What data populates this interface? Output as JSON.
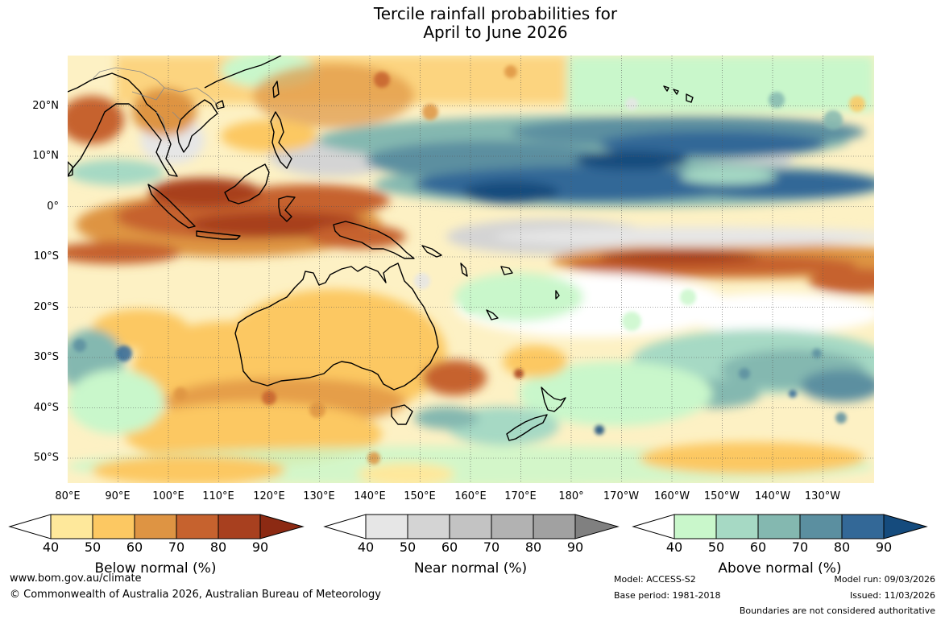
{
  "title": {
    "line1": "Tercile rainfall probabilities for",
    "line2": "April to June 2026"
  },
  "map": {
    "latitude_labels": [
      "20°N",
      "10°N",
      "0°",
      "10°S",
      "20°S",
      "30°S",
      "40°S",
      "50°S"
    ],
    "longitude_labels": [
      "80°E",
      "90°E",
      "100°E",
      "110°E",
      "120°E",
      "130°E",
      "140°E",
      "150°E",
      "160°E",
      "170°E",
      "180°",
      "170°W",
      "160°W",
      "150°W",
      "140°W",
      "130°W"
    ]
  },
  "legends": [
    {
      "title": "Below normal (%)",
      "labels": [
        "40",
        "50",
        "60",
        "70",
        "80",
        "90"
      ],
      "colors": [
        "#ffffff",
        "#fee89b",
        "#fcc862",
        "#de9443",
        "#c6622e",
        "#a8401f",
        "#8c2a13"
      ]
    },
    {
      "title": "Near normal (%)",
      "labels": [
        "40",
        "50",
        "60",
        "70",
        "80",
        "90"
      ],
      "colors": [
        "#ffffff",
        "#e6e6e6",
        "#d4d4d4",
        "#c3c3c3",
        "#b2b2b2",
        "#a1a1a1",
        "#808080"
      ]
    },
    {
      "title": "Above normal (%)",
      "labels": [
        "40",
        "50",
        "60",
        "70",
        "80",
        "90"
      ],
      "colors": [
        "#ffffff",
        "#c9f7cb",
        "#a6d9c4",
        "#84b8b0",
        "#5b8fa0",
        "#336897",
        "#154b7d"
      ]
    }
  ],
  "footer": {
    "url": "www.bom.gov.au/climate",
    "copyright": "© Commonwealth of Australia 2026, Australian Bureau of Meteorology",
    "model": "Model: ACCESS-S2",
    "base_period": "Base period: 1981-2018",
    "model_run": "Model run: 09/03/2026",
    "issued": "Issued: 11/03/2026",
    "disclaimer": "Boundaries are not considered authoritative"
  }
}
